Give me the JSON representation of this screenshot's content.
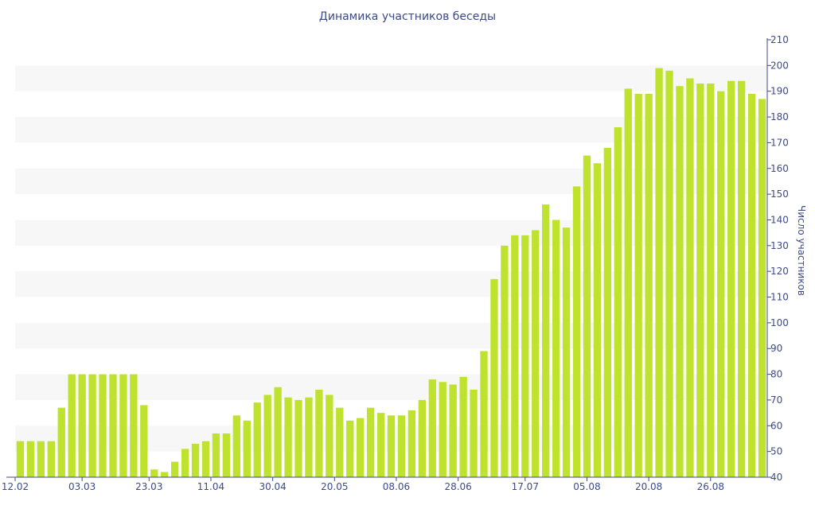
{
  "chart_data": {
    "type": "bar",
    "title": "Динамика участников беседы",
    "ylabel": "Число участников",
    "xlabel": "",
    "ylim": [
      40,
      210
    ],
    "yticks": [
      40,
      50,
      60,
      70,
      80,
      90,
      100,
      110,
      120,
      130,
      140,
      150,
      160,
      170,
      180,
      190,
      200,
      210
    ],
    "y_axis_side": "right",
    "bar_color": "#bfe22e",
    "band_color": "#f7f7f7",
    "axis_color": "#3b4a8c",
    "x_tick_labels": [
      {
        "label": "12.02",
        "index": -0.5
      },
      {
        "label": "03.03",
        "index": 6
      },
      {
        "label": "23.03",
        "index": 12.5
      },
      {
        "label": "11.04",
        "index": 18.5
      },
      {
        "label": "30.04",
        "index": 24.5
      },
      {
        "label": "20.05",
        "index": 30.5
      },
      {
        "label": "08.06",
        "index": 36.5
      },
      {
        "label": "28.06",
        "index": 42.5
      },
      {
        "label": "17.07",
        "index": 49
      },
      {
        "label": "05.08",
        "index": 55
      },
      {
        "label": "20.08",
        "index": 61
      },
      {
        "label": "26.08",
        "index": 67
      }
    ],
    "values": [
      54,
      54,
      54,
      54,
      67,
      80,
      80,
      80,
      80,
      80,
      80,
      80,
      68,
      43,
      42,
      46,
      51,
      53,
      54,
      57,
      57,
      64,
      62,
      69,
      72,
      75,
      71,
      70,
      71,
      74,
      72,
      67,
      62,
      63,
      67,
      65,
      64,
      64,
      66,
      70,
      78,
      77,
      76,
      79,
      74,
      89,
      117,
      130,
      134,
      134,
      136,
      146,
      140,
      137,
      153,
      165,
      162,
      168,
      176,
      191,
      189,
      189,
      199,
      198,
      192,
      195,
      193,
      193,
      190,
      194,
      194,
      189,
      187
    ]
  }
}
